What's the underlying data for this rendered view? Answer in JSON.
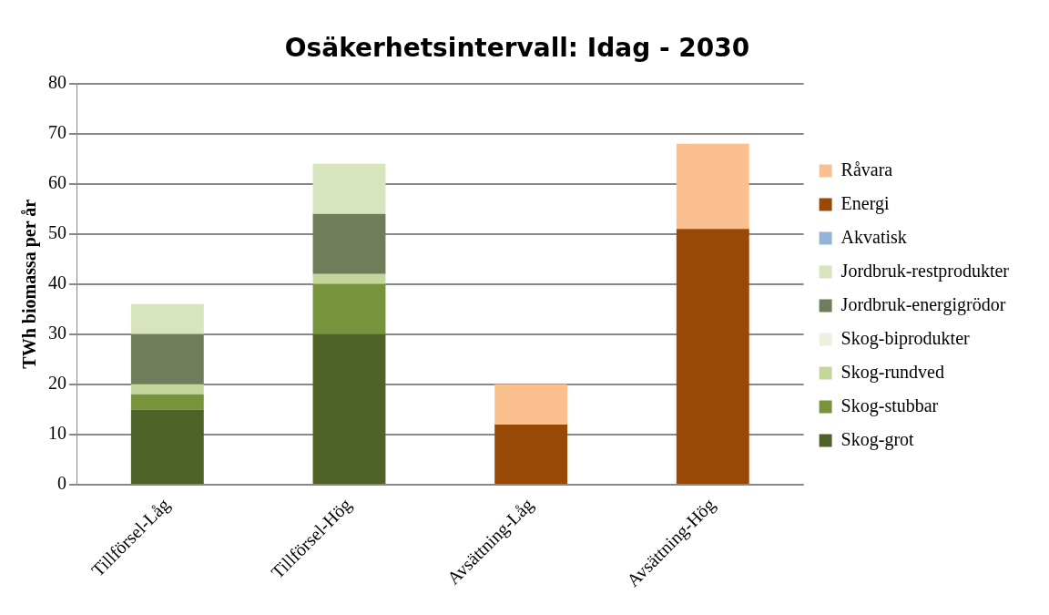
{
  "chart_data": {
    "type": "bar",
    "title": "Osäkerhetsintervall: Idag - 2030",
    "ylabel": "TWh biomassa per år",
    "categories": [
      "Tillförsel-Låg",
      "Tillförsel-Hög",
      "Avsättning-Låg",
      "Avsättning-Hög"
    ],
    "stacked": true,
    "ylim": [
      0,
      80
    ],
    "yticks": [
      0,
      10,
      20,
      30,
      40,
      50,
      60,
      70,
      80
    ],
    "grid": "y",
    "legend": "right",
    "series": [
      {
        "name": "Skog-grot",
        "color": "#4f6228",
        "values": [
          15,
          30,
          0,
          0
        ]
      },
      {
        "name": "Skog-stubbar",
        "color": "#77933c",
        "values": [
          3,
          10,
          0,
          0
        ]
      },
      {
        "name": "Skog-rundved",
        "color": "#c3d69b",
        "values": [
          2,
          2,
          0,
          0
        ]
      },
      {
        "name": "Skog-biprodukter",
        "color": "#ebf1de",
        "values": [
          0,
          0,
          0,
          0
        ]
      },
      {
        "name": "Jordbruk-energigrödor",
        "color": "#6f7d5a",
        "values": [
          10,
          12,
          0,
          0
        ]
      },
      {
        "name": "Jordbruk-restprodukter",
        "color": "#d7e4bd",
        "values": [
          6,
          10,
          0,
          0
        ]
      },
      {
        "name": "Akvatisk",
        "color": "#95b3d7",
        "values": [
          0,
          0,
          0,
          0
        ]
      },
      {
        "name": "Energi",
        "color": "#984807",
        "values": [
          0,
          0,
          12,
          51
        ]
      },
      {
        "name": "Råvara",
        "color": "#fac090",
        "values": [
          0,
          0,
          8,
          17
        ]
      }
    ]
  }
}
